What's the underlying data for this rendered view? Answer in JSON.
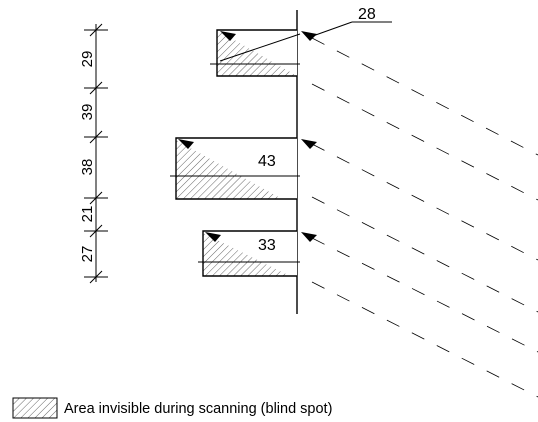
{
  "dimensions": {
    "values": [
      "29",
      "39",
      "38",
      "21",
      "27"
    ]
  },
  "labels": {
    "top": "28",
    "middle": "43",
    "bottom": "33"
  },
  "legend": {
    "text": "Area invisible during scanning (blind spot)"
  }
}
